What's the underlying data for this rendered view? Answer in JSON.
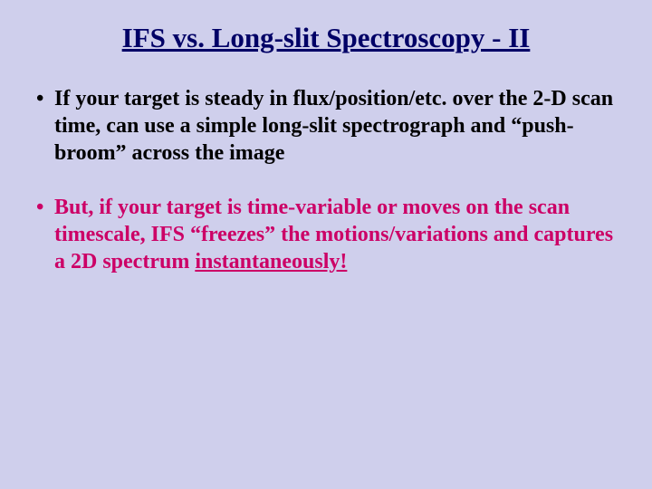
{
  "background_color": "#cfcfec",
  "title_color": "#000066",
  "text_black": "#000000",
  "text_red": "#cc0066",
  "title_fontsize": 31,
  "body_fontsize": 24,
  "title": "IFS vs. Long-slit Spectroscopy - II",
  "bullets": [
    {
      "color": "black",
      "text": "If your target is steady in flux/position/etc. over the 2-D scan time, can use a simple long-slit spectrograph and “push-broom” across the image"
    },
    {
      "color": "red",
      "prefix": "But, if your target is time-variable or moves on the scan timescale, IFS “freezes” the motions/variations and captures a 2D spectrum ",
      "underlined": "instantaneously!"
    }
  ]
}
